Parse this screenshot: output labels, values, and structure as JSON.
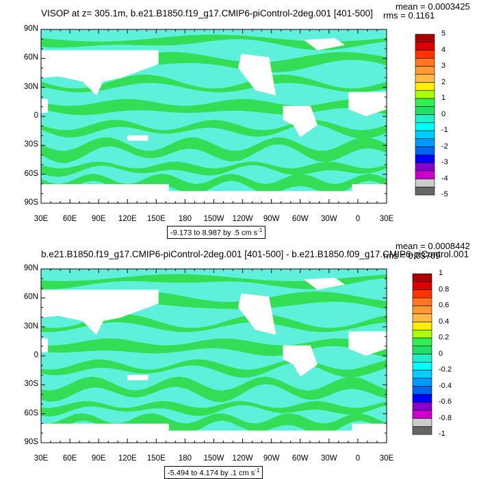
{
  "colors": {
    "ocean_base": "#5ff0dc",
    "ocean_band": "#33dd55",
    "land": "#ffffff",
    "frame": "#000000"
  },
  "panels": [
    {
      "title": "VISOP at z= 305.1m, b.e21.B1850.f19_g17.CMIP6-piControl-2deg.001 [401-500]",
      "mean_label": "mean = 0.0003425",
      "rms_label": "rms = 0.1161",
      "range_label_prefix": "-9.173 to 8.987 by .5 cm s",
      "range_unit_exp": "-1",
      "colorbar_ticks": [
        "5",
        "4",
        "3",
        "2",
        "1",
        "0",
        "-1",
        "-2",
        "-3",
        "-4",
        "-5"
      ]
    },
    {
      "title": "b.e21.B1850.f19_g17.CMIP6-piControl-2deg.001 [401-500] - b.e21.B1850.f09_g17.CMIP6-piControl.001",
      "mean_label": "mean = 0.0008442",
      "rms_label": "rms = 0.03709",
      "range_label_prefix": "-5.494 to 4.174 by .1 cm s",
      "range_unit_exp": "-1",
      "colorbar_ticks": [
        "1",
        "0.8",
        "0.6",
        "0.4",
        "0.2",
        "0",
        "-0.2",
        "-0.4",
        "-0.6",
        "-0.8",
        "-1"
      ]
    }
  ],
  "axis": {
    "y_ticks": [
      "90N",
      "60N",
      "30N",
      "0",
      "30S",
      "60S",
      "90S"
    ],
    "x_ticks": [
      "30E",
      "60E",
      "90E",
      "120E",
      "150E",
      "180",
      "150W",
      "120W",
      "90W",
      "60W",
      "30W",
      "0",
      "30E"
    ]
  },
  "colorbar_colors": [
    "#aa0000",
    "#dd0000",
    "#ff3300",
    "#ff7722",
    "#ff9933",
    "#ffbb44",
    "#ffee00",
    "#aaff00",
    "#33ee55",
    "#22dd66",
    "#22eecc",
    "#00ffff",
    "#00ccff",
    "#0099ff",
    "#0066ee",
    "#0000ff",
    "#8800cc",
    "#cc00cc",
    "#cccccc",
    "#666666"
  ],
  "chart_data": [
    {
      "type": "heatmap",
      "title": "VISOP at z= 305.1m, b.e21.B1850.f19_g17.CMIP6-piControl-2deg.001 [401-500]",
      "x_range": [
        "30E",
        "30E (390)"
      ],
      "y_range": [
        "90S",
        "90N"
      ],
      "x_tick_labels": [
        "30E",
        "60E",
        "90E",
        "120E",
        "150E",
        "180",
        "150W",
        "120W",
        "90W",
        "60W",
        "30W",
        "0",
        "30E"
      ],
      "y_tick_labels": [
        "90N",
        "60N",
        "30N",
        "0",
        "30S",
        "60S",
        "90S"
      ],
      "contour_min": -9.173,
      "contour_max": 8.987,
      "contour_interval": 0.5,
      "units": "cm s-1",
      "colorbar_levels": [
        5,
        4,
        3,
        2,
        1,
        0,
        -1,
        -2,
        -3,
        -4,
        -5
      ],
      "mean": 0.0003425,
      "rms": 0.1161
    },
    {
      "type": "heatmap",
      "title": "b.e21.B1850.f19_g17.CMIP6-piControl-2deg.001 [401-500] - b.e21.B1850.f09_g17.CMIP6-piControl.001",
      "x_range": [
        "30E",
        "30E (390)"
      ],
      "y_range": [
        "90S",
        "90N"
      ],
      "x_tick_labels": [
        "30E",
        "60E",
        "90E",
        "120E",
        "150E",
        "180",
        "150W",
        "120W",
        "90W",
        "60W",
        "30W",
        "0",
        "30E"
      ],
      "y_tick_labels": [
        "90N",
        "60N",
        "30N",
        "0",
        "30S",
        "60S",
        "90S"
      ],
      "contour_min": -5.494,
      "contour_max": 4.174,
      "contour_interval": 0.1,
      "units": "cm s-1",
      "colorbar_levels": [
        1,
        0.8,
        0.6,
        0.4,
        0.2,
        0,
        -0.2,
        -0.4,
        -0.6,
        -0.8,
        -1
      ],
      "mean": 0.0008442,
      "rms": 0.03709
    }
  ]
}
